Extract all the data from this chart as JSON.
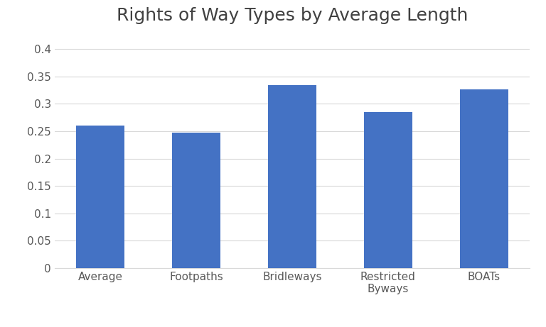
{
  "title": "Rights of Way Types by Average Length",
  "categories": [
    "Average",
    "Footpaths",
    "Bridleways",
    "Restricted\nByways",
    "BOATs"
  ],
  "values": [
    0.261,
    0.248,
    0.334,
    0.285,
    0.326
  ],
  "bar_color": "#4472C4",
  "ylim": [
    0,
    0.43
  ],
  "yticks": [
    0,
    0.05,
    0.1,
    0.15,
    0.2,
    0.25,
    0.3,
    0.35,
    0.4
  ],
  "ytick_labels": [
    "0",
    "0.05",
    "0.1",
    "0.15",
    "0.2",
    "0.25",
    "0.3",
    "0.35",
    "0.4"
  ],
  "background_color": "#ffffff",
  "title_fontsize": 18,
  "tick_fontsize": 11,
  "title_color": "#404040",
  "tick_color": "#595959",
  "grid_color": "#d9d9d9",
  "bar_width": 0.5
}
